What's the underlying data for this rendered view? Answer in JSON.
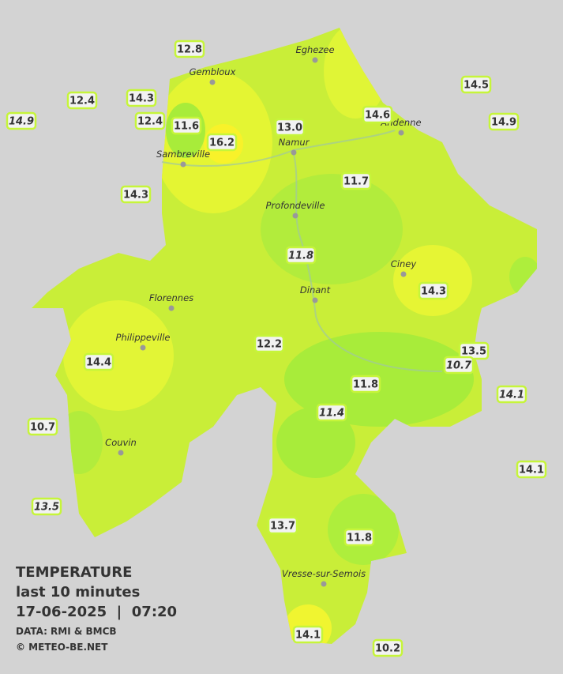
{
  "map": {
    "stations": [
      {
        "label": "12.8",
        "italic": false
      },
      {
        "label": "12.4",
        "italic": false
      },
      {
        "label": "14.3",
        "italic": false
      },
      {
        "label": "14.9",
        "italic": true
      },
      {
        "label": "12.4",
        "italic": false
      },
      {
        "label": "11.6",
        "italic": false
      },
      {
        "label": "16.2",
        "italic": false
      },
      {
        "label": "13.0",
        "italic": false
      },
      {
        "label": "14.6",
        "italic": false
      },
      {
        "label": "14.5",
        "italic": false
      },
      {
        "label": "14.9",
        "italic": false
      },
      {
        "label": "14.3",
        "italic": false
      },
      {
        "label": "11.7",
        "italic": false
      },
      {
        "label": "11.8",
        "italic": true
      },
      {
        "label": "14.3",
        "italic": false
      },
      {
        "label": "12.2",
        "italic": false
      },
      {
        "label": "14.4",
        "italic": false
      },
      {
        "label": "13.5",
        "italic": false
      },
      {
        "label": "10.7",
        "italic": true
      },
      {
        "label": "11.8",
        "italic": false
      },
      {
        "label": "11.4",
        "italic": true
      },
      {
        "label": "14.1",
        "italic": true
      },
      {
        "label": "10.7",
        "italic": false
      },
      {
        "label": "14.1",
        "italic": false
      },
      {
        "label": "13.5",
        "italic": true
      },
      {
        "label": "13.7",
        "italic": false
      },
      {
        "label": "11.8",
        "italic": false
      },
      {
        "label": "14.1",
        "italic": false
      },
      {
        "label": "10.2",
        "italic": false
      }
    ],
    "towns": [
      "Eghezee",
      "Gembloux",
      "Andenne",
      "Namur",
      "Sambreville",
      "Profondeville",
      "Ciney",
      "Florennes",
      "Dinant",
      "Philippeville",
      "Couvin",
      "Vresse-sur-Semois"
    ]
  },
  "legend": {
    "title": "TEMPERATURE",
    "period": "last 10 minutes",
    "datetime": "17-06-2025  |  07:20",
    "source": "DATA: RMI & BMCB",
    "credit": "© METEO-BE.NET"
  }
}
